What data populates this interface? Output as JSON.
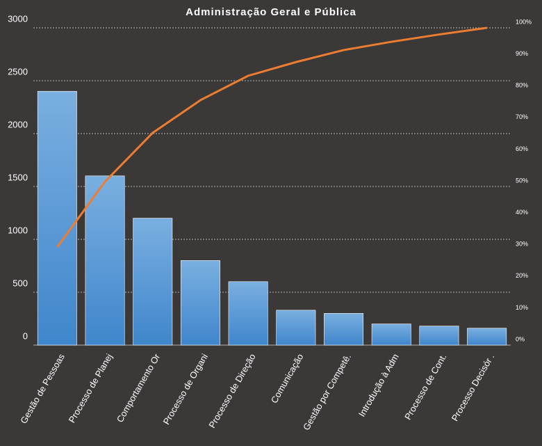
{
  "chart_data": {
    "type": "pareto",
    "title": "Administração  Geral  e Pública",
    "categories": [
      "Gestão de Pessoas",
      "Processo de Planej",
      "Comportamento Or",
      "Processo de Organi",
      "Processo de Direção",
      "Comunicação",
      "Gestão por Competê.",
      "Introdução à Adm",
      "Processo de Cont.",
      "Processo Decisór ."
    ],
    "series": [
      {
        "type": "bar",
        "color": "#5b9bd5",
        "values": [
          2400,
          1600,
          1200,
          800,
          600,
          330,
          300,
          200,
          180,
          160
        ]
      },
      {
        "type": "line",
        "axis": "y2",
        "color": "#ed7d31",
        "values": [
          30.9,
          51.5,
          66.9,
          77.2,
          84.9,
          89.2,
          93.0,
          95.6,
          97.9,
          100
        ]
      }
    ],
    "ylim": [
      0,
      3000
    ],
    "yticks": [
      0,
      500,
      1000,
      1500,
      2000,
      2500,
      3000
    ],
    "y2lim": [
      0,
      100
    ],
    "y2ticks": [
      {
        "value": 0,
        "label": "0%"
      },
      {
        "value": 10,
        "label": "10%"
      },
      {
        "value": 20,
        "label": "20%"
      },
      {
        "value": 30,
        "label": "30%"
      },
      {
        "value": 40,
        "label": "40%"
      },
      {
        "value": 50,
        "label": "50%"
      },
      {
        "value": 60,
        "label": "60%"
      },
      {
        "value": 70,
        "label": "70%"
      },
      {
        "value": 80,
        "label": "80%"
      },
      {
        "value": 90,
        "label": "90%"
      },
      {
        "value": 100,
        "label": "100%"
      }
    ],
    "grid": true
  }
}
